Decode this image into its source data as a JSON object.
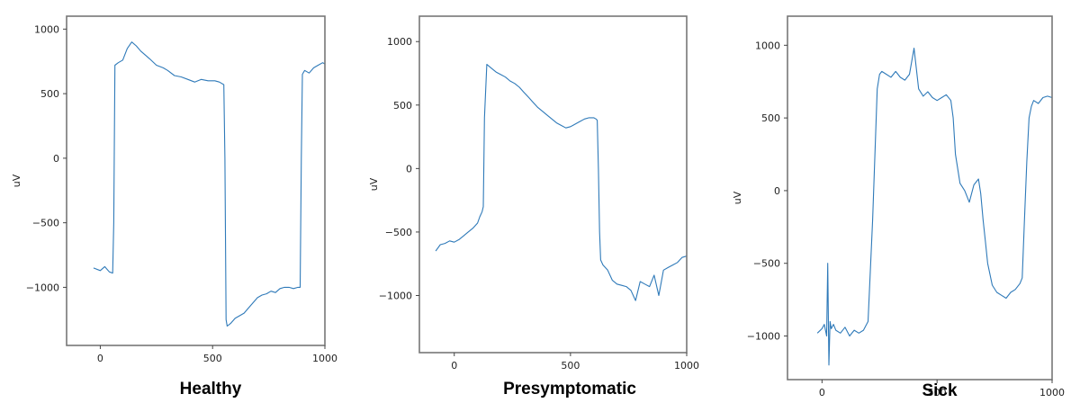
{
  "chart_data": [
    {
      "type": "line",
      "title": "Healthy",
      "ylabel": "uV",
      "xlim": [
        -150,
        1000
      ],
      "ylim": [
        -1450,
        1100
      ],
      "xticks": [
        0,
        500,
        1000
      ],
      "yticks": [
        -1000,
        -500,
        0,
        500,
        1000
      ],
      "series_color": "#2f7ab9",
      "x": [
        -30,
        0,
        20,
        40,
        55,
        60,
        65,
        80,
        100,
        120,
        140,
        160,
        180,
        200,
        220,
        250,
        280,
        300,
        330,
        360,
        390,
        420,
        450,
        480,
        510,
        530,
        550,
        555,
        560,
        565,
        580,
        600,
        620,
        640,
        660,
        680,
        700,
        720,
        740,
        760,
        780,
        800,
        820,
        840,
        860,
        880,
        890,
        895,
        900,
        910,
        930,
        950,
        970,
        990,
        1000
      ],
      "y": [
        -850,
        -870,
        -840,
        -880,
        -890,
        -500,
        720,
        740,
        760,
        850,
        900,
        870,
        830,
        800,
        770,
        720,
        700,
        680,
        640,
        630,
        610,
        590,
        610,
        600,
        600,
        590,
        570,
        0,
        -1250,
        -1300,
        -1280,
        -1240,
        -1220,
        -1200,
        -1160,
        -1120,
        -1080,
        -1060,
        -1050,
        -1030,
        -1040,
        -1010,
        -1000,
        -1000,
        -1010,
        -1000,
        -1000,
        0,
        650,
        680,
        660,
        700,
        720,
        740,
        730
      ]
    },
    {
      "type": "line",
      "title": "Presymptomatic",
      "ylabel": "uV",
      "xlim": [
        -150,
        1000
      ],
      "ylim": [
        -1450,
        1200
      ],
      "xticks": [
        0,
        500,
        1000
      ],
      "yticks": [
        -1000,
        -500,
        0,
        500,
        1000
      ],
      "series_color": "#2f7ab9",
      "x": [
        -80,
        -60,
        -40,
        -20,
        0,
        20,
        40,
        60,
        80,
        100,
        110,
        120,
        125,
        130,
        140,
        160,
        180,
        200,
        220,
        240,
        260,
        280,
        300,
        320,
        340,
        360,
        380,
        400,
        420,
        440,
        460,
        480,
        500,
        520,
        540,
        560,
        580,
        600,
        610,
        615,
        620,
        625,
        630,
        640,
        660,
        680,
        700,
        720,
        740,
        760,
        780,
        800,
        820,
        840,
        860,
        880,
        900,
        920,
        940,
        960,
        980,
        1000
      ],
      "y": [
        -650,
        -600,
        -590,
        -570,
        -580,
        -560,
        -530,
        -500,
        -470,
        -430,
        -380,
        -340,
        -300,
        400,
        820,
        790,
        760,
        740,
        720,
        690,
        670,
        640,
        600,
        560,
        520,
        480,
        450,
        420,
        390,
        360,
        340,
        320,
        330,
        350,
        370,
        390,
        400,
        400,
        390,
        380,
        0,
        -500,
        -720,
        -760,
        -800,
        -880,
        -910,
        -920,
        -930,
        -960,
        -1040,
        -890,
        -910,
        -930,
        -840,
        -1000,
        -800,
        -780,
        -760,
        -740,
        -700,
        -690
      ]
    },
    {
      "type": "line",
      "title": "Sick",
      "ylabel": "uV",
      "xlim": [
        -150,
        1000
      ],
      "ylim": [
        -1300,
        1200
      ],
      "xticks": [
        0,
        500,
        1000
      ],
      "yticks": [
        -1000,
        -500,
        0,
        500,
        1000
      ],
      "series_color": "#2f7ab9",
      "x": [
        -20,
        0,
        10,
        20,
        25,
        30,
        35,
        40,
        50,
        60,
        80,
        100,
        120,
        140,
        160,
        180,
        200,
        220,
        240,
        250,
        260,
        280,
        300,
        320,
        340,
        360,
        380,
        400,
        420,
        440,
        460,
        480,
        500,
        520,
        540,
        560,
        570,
        580,
        600,
        620,
        640,
        660,
        680,
        690,
        700,
        710,
        720,
        740,
        760,
        780,
        800,
        820,
        840,
        860,
        870,
        880,
        890,
        900,
        910,
        920,
        940,
        960,
        980,
        1000
      ],
      "y": [
        -980,
        -950,
        -920,
        -1000,
        -500,
        -1200,
        -900,
        -950,
        -920,
        -960,
        -980,
        -940,
        -1000,
        -960,
        -980,
        -960,
        -900,
        -200,
        700,
        800,
        820,
        800,
        780,
        820,
        780,
        760,
        800,
        980,
        700,
        650,
        680,
        640,
        620,
        640,
        660,
        620,
        500,
        250,
        50,
        0,
        -80,
        40,
        80,
        -20,
        -200,
        -350,
        -500,
        -650,
        -700,
        -720,
        -740,
        -700,
        -680,
        -640,
        -600,
        -200,
        200,
        500,
        580,
        620,
        600,
        640,
        650,
        640
      ]
    }
  ]
}
